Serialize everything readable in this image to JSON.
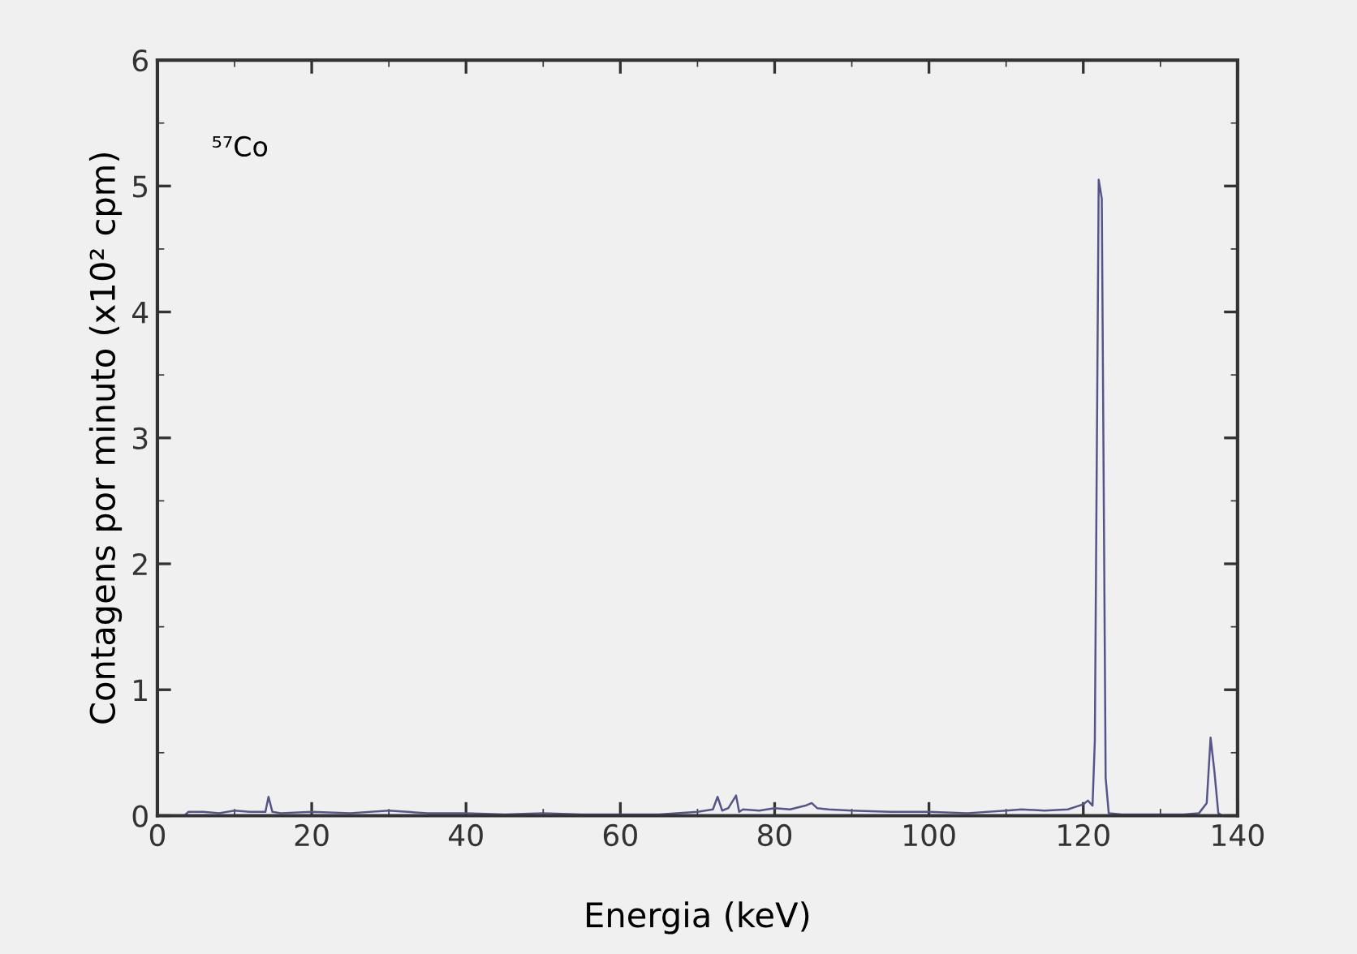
{
  "chart_data": {
    "type": "line",
    "xlabel": "Energia (keV)",
    "ylabel": "Contagens por minuto (x10² cpm)",
    "annotations": [
      "⁵⁷Co"
    ],
    "series": [
      {
        "color": "#55558a",
        "x": [
          3.5,
          4,
          6,
          8,
          10,
          12,
          14,
          14.4,
          14.9,
          16,
          20,
          25,
          30,
          35,
          40,
          45,
          50,
          55,
          60,
          65,
          70,
          72,
          72.6,
          73.2,
          74,
          75,
          75.4,
          75.9,
          78,
          80,
          82,
          84,
          84.8,
          85.5,
          87,
          90,
          95,
          100,
          105,
          110,
          112,
          115,
          118,
          119,
          120,
          120.6,
          121.2,
          121.5,
          122.0,
          122.4,
          122.9,
          123.3,
          125,
          128,
          130,
          133,
          135,
          136.0,
          136.5,
          137.0,
          137.5,
          138
        ],
        "values": [
          0,
          0.03,
          0.03,
          0.02,
          0.04,
          0.03,
          0.03,
          0.15,
          0.03,
          0.02,
          0.03,
          0.02,
          0.04,
          0.02,
          0.02,
          0.01,
          0.02,
          0.01,
          0.01,
          0.01,
          0.03,
          0.05,
          0.15,
          0.04,
          0.06,
          0.16,
          0.03,
          0.05,
          0.04,
          0.06,
          0.05,
          0.08,
          0.1,
          0.06,
          0.05,
          0.04,
          0.03,
          0.03,
          0.02,
          0.04,
          0.05,
          0.04,
          0.05,
          0.07,
          0.09,
          0.12,
          0.08,
          0.6,
          5.05,
          4.9,
          0.3,
          0.02,
          0.01,
          0.01,
          0.01,
          0.01,
          0.02,
          0.1,
          0.62,
          0.35,
          0.02,
          0.0
        ]
      }
    ],
    "xlim": [
      0,
      140
    ],
    "xticks": [
      0,
      20,
      40,
      60,
      80,
      100,
      120,
      140
    ],
    "ylim": [
      0,
      6
    ],
    "yticks": [
      0,
      1,
      2,
      3,
      4,
      5,
      6
    ],
    "grid": false,
    "legend": false,
    "marker": "none",
    "line_style": "solid"
  }
}
